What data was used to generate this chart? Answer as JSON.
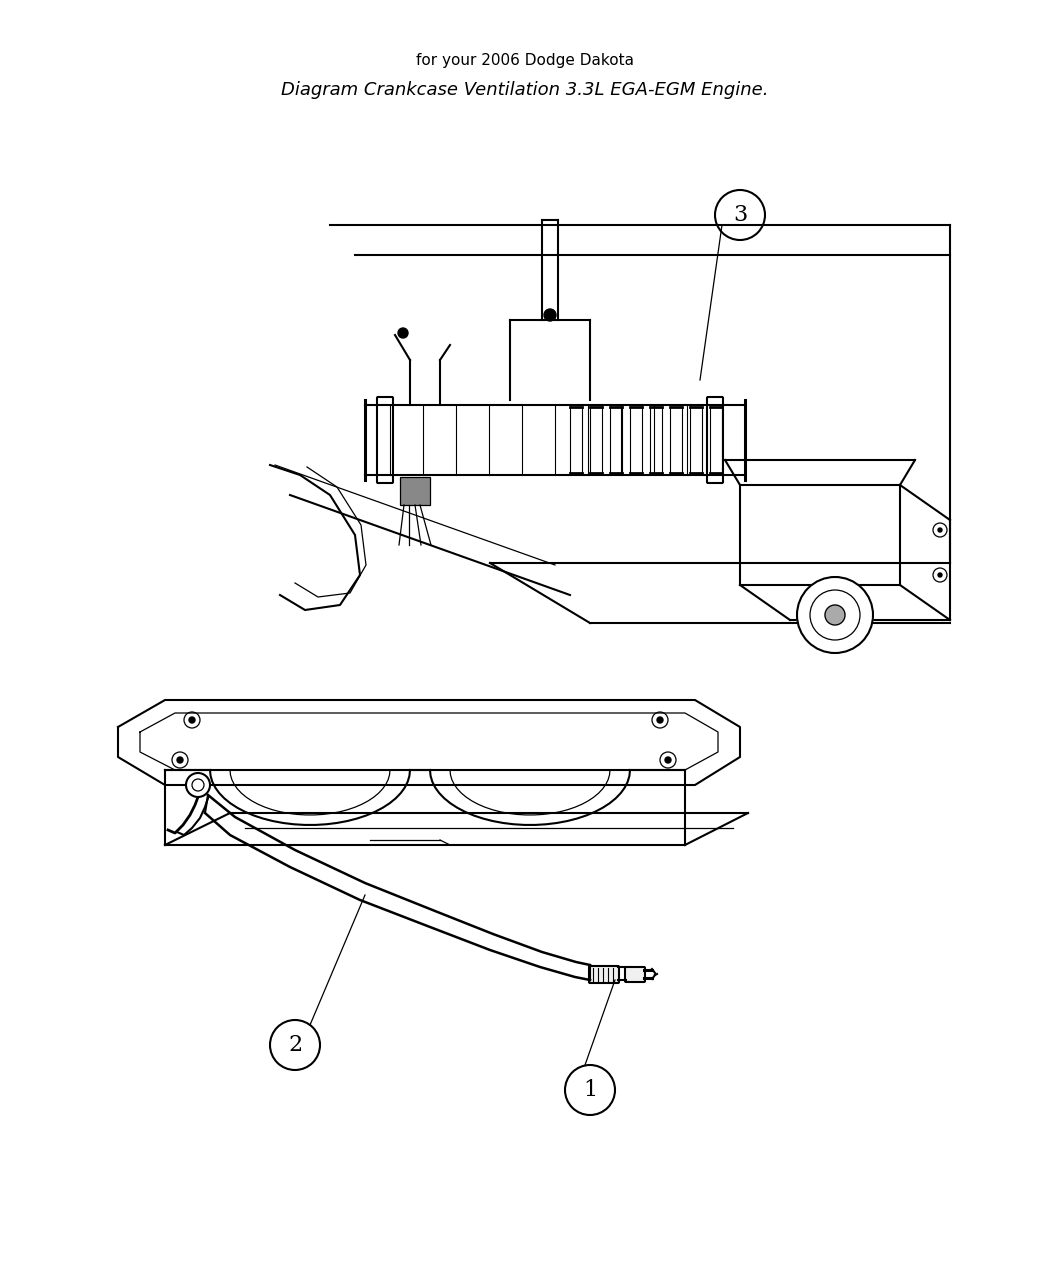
{
  "title": "Diagram Crankcase Ventilation 3.3L EGA-EGM Engine.",
  "subtitle": "for your 2006 Dodge Dakota",
  "background_color": "#ffffff",
  "line_color": "#000000",
  "label_1": "1",
  "label_2": "2",
  "label_3": "3",
  "figsize": [
    10.5,
    12.75
  ],
  "dpi": 100,
  "lw_main": 1.5,
  "lw_thick": 2.2,
  "lw_thin": 0.9
}
